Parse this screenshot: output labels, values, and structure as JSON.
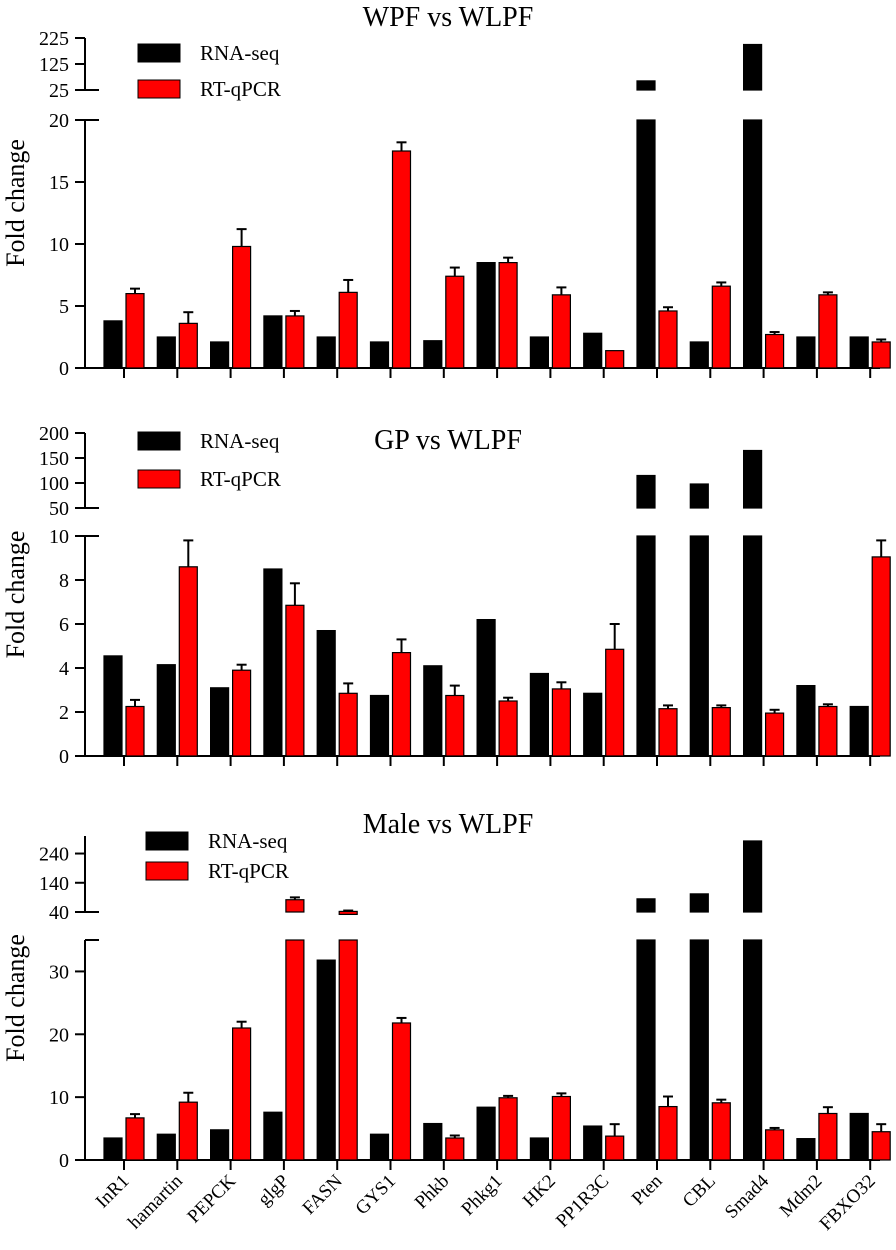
{
  "figure": {
    "genes": [
      "InR1",
      "hamartin",
      "PEPCK",
      "glgP",
      "FASN",
      "GYS1",
      "Phkb",
      "Phkg1",
      "HK2",
      "PP1R3C",
      "Pten",
      "CBL",
      "Smad4",
      "Mdm2",
      "FBXO32"
    ],
    "legend": {
      "rna_label": "RNA-seq",
      "qpcr_label": "RT-qPCR"
    },
    "colors": {
      "rna": "#000000",
      "qpcr": "#ff0000"
    }
  },
  "chart_data": [
    {
      "type": "bar",
      "title": "WPF vs WLPF",
      "ylabel": "Fold change",
      "lower_axis": {
        "ylim": [
          0,
          20
        ],
        "ticks": [
          0,
          5,
          10,
          15,
          20
        ]
      },
      "upper_axis": {
        "ylim": [
          25,
          225
        ],
        "ticks": [
          25,
          125,
          225
        ]
      },
      "series": [
        {
          "name": "RNA-seq",
          "values": [
            3.8,
            2.5,
            2.1,
            4.2,
            2.5,
            2.1,
            2.2,
            8.5,
            2.5,
            2.8,
            60,
            2.1,
            200,
            2.5,
            2.5
          ],
          "errors": [
            0,
            0,
            0,
            0,
            0,
            0,
            0,
            0,
            0,
            0,
            0,
            0,
            0,
            0,
            0
          ]
        },
        {
          "name": "RT-qPCR",
          "values": [
            6.0,
            3.6,
            9.8,
            4.2,
            6.1,
            17.5,
            7.4,
            8.5,
            5.9,
            1.4,
            4.6,
            6.6,
            2.7,
            5.9,
            2.1
          ],
          "errors": [
            0.4,
            0.9,
            1.4,
            0.4,
            1.0,
            0.7,
            0.7,
            0.4,
            0.6,
            0.0,
            0.3,
            0.3,
            0.2,
            0.2,
            0.2
          ]
        }
      ]
    },
    {
      "type": "bar",
      "title": "GP vs WLPF",
      "ylabel": "Fold change",
      "lower_axis": {
        "ylim": [
          0,
          10
        ],
        "ticks": [
          0,
          2,
          4,
          6,
          8,
          10
        ]
      },
      "upper_axis": {
        "ylim": [
          50,
          200
        ],
        "ticks": [
          50,
          100,
          150,
          200
        ]
      },
      "series": [
        {
          "name": "RNA-seq",
          "values": [
            4.55,
            4.15,
            3.1,
            8.5,
            5.7,
            2.75,
            4.1,
            6.2,
            3.75,
            2.85,
            115,
            98,
            165,
            3.2,
            2.25
          ],
          "errors": [
            0,
            0,
            0,
            0,
            0,
            0,
            0,
            0,
            0,
            0,
            0,
            0,
            0,
            0,
            0
          ]
        },
        {
          "name": "RT-qPCR",
          "values": [
            2.25,
            8.6,
            3.9,
            6.85,
            2.85,
            4.7,
            2.75,
            2.5,
            3.05,
            4.85,
            2.15,
            2.2,
            1.95,
            2.25,
            9.05
          ],
          "errors": [
            0.3,
            1.2,
            0.25,
            1.0,
            0.45,
            0.6,
            0.45,
            0.15,
            0.3,
            1.15,
            0.15,
            0.1,
            0.15,
            0.1,
            0.75
          ]
        }
      ]
    },
    {
      "type": "bar",
      "title": "Male vs WLPF",
      "ylabel": "Fold change",
      "lower_axis": {
        "ylim": [
          0,
          35
        ],
        "ticks": [
          0,
          10,
          20,
          30
        ]
      },
      "upper_axis": {
        "ylim": [
          40,
          300
        ],
        "ticks": [
          40,
          140,
          240
        ]
      },
      "series": [
        {
          "name": "RNA-seq",
          "values": [
            3.5,
            4.1,
            4.8,
            7.6,
            31.8,
            4.1,
            5.8,
            8.4,
            3.5,
            5.4,
            85,
            102,
            283,
            3.4,
            7.4
          ],
          "errors": [
            0,
            0,
            0,
            0,
            0,
            0,
            0,
            0,
            0,
            0,
            0,
            0,
            0,
            0,
            0
          ]
        },
        {
          "name": "RT-qPCR",
          "values": [
            6.7,
            9.2,
            21.0,
            82,
            42,
            21.8,
            3.5,
            9.9,
            10.1,
            3.8,
            8.5,
            9.1,
            4.8,
            7.4,
            4.5
          ],
          "errors": [
            0.6,
            1.5,
            1.0,
            8,
            3,
            0.8,
            0.4,
            0.3,
            0.5,
            1.9,
            1.6,
            0.5,
            0.3,
            1.0,
            1.2
          ]
        }
      ]
    }
  ]
}
